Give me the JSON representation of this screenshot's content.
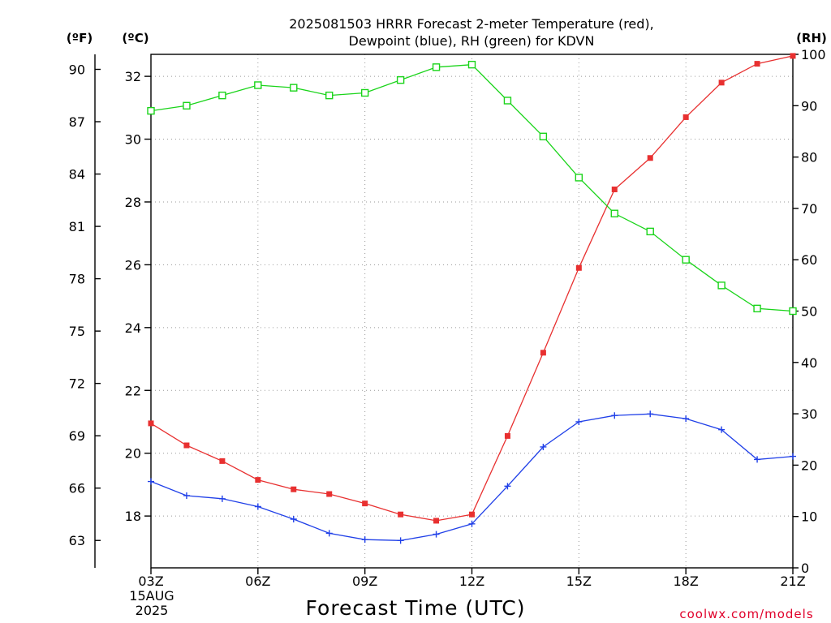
{
  "chart_data": {
    "type": "line",
    "title": [
      "2025081503 HRRR Forecast 2-meter Temperature (red),",
      "Dewpoint (blue), RH (green) for KDVN"
    ],
    "xlabel": "Forecast Time (UTC)",
    "x": [
      "03Z",
      "04Z",
      "05Z",
      "06Z",
      "07Z",
      "08Z",
      "09Z",
      "10Z",
      "11Z",
      "12Z",
      "13Z",
      "14Z",
      "15Z",
      "16Z",
      "17Z",
      "18Z",
      "19Z",
      "20Z",
      "21Z"
    ],
    "xticks": [
      "03Z",
      "06Z",
      "09Z",
      "12Z",
      "15Z",
      "18Z",
      "21Z"
    ],
    "xdate": [
      "15AUG",
      "2025"
    ],
    "left_axis_f": {
      "unit": "(ºF)",
      "ticks": [
        90,
        87,
        84,
        81,
        78,
        75,
        72,
        69,
        66,
        63
      ]
    },
    "left_axis_c": {
      "unit": "(ºC)",
      "ticks": [
        32,
        30,
        28,
        26,
        24,
        22,
        20,
        18
      ],
      "ylim": [
        16.35,
        32.7
      ]
    },
    "right_axis_rh": {
      "unit": "(RH)",
      "ticks": [
        100,
        90,
        80,
        70,
        60,
        50,
        40,
        30,
        20,
        10,
        0
      ],
      "ylim": [
        0,
        100
      ]
    },
    "grid": true,
    "series": [
      {
        "name": "Temperature",
        "axis": "c",
        "color": "#e83030",
        "marker": "filled-square",
        "values": [
          20.95,
          20.25,
          19.75,
          19.15,
          18.85,
          18.7,
          18.4,
          18.05,
          17.85,
          18.05,
          20.55,
          23.2,
          25.9,
          28.4,
          29.4,
          30.7,
          31.8,
          32.4,
          32.65
        ]
      },
      {
        "name": "Dewpoint",
        "axis": "c",
        "color": "#2040e8",
        "marker": "plus",
        "values": [
          19.1,
          18.65,
          18.55,
          18.3,
          17.9,
          17.45,
          17.25,
          17.22,
          17.42,
          17.75,
          18.95,
          20.2,
          21.0,
          21.2,
          21.25,
          21.1,
          20.75,
          19.8,
          19.9
        ]
      },
      {
        "name": "RH",
        "axis": "rh",
        "color": "#1ad41a",
        "marker": "open-square",
        "values": [
          89,
          90,
          92,
          94,
          93.5,
          92,
          92.5,
          95,
          97.5,
          98,
          91,
          84,
          76,
          69,
          65.5,
          60,
          55,
          50.5,
          50
        ]
      }
    ]
  },
  "credit": "coolwx.com/models"
}
